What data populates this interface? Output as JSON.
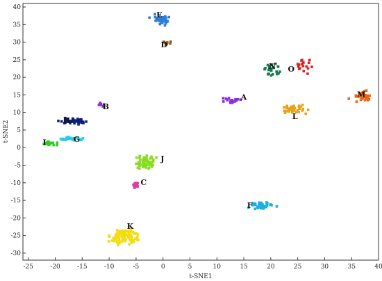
{
  "chart_data": {
    "type": "scatter",
    "xlabel": "t-SNE1",
    "ylabel": "t-SNE2",
    "xlim": [
      -26,
      40
    ],
    "ylim": [
      -32,
      41
    ],
    "xticks": [
      -25,
      -20,
      -15,
      -10,
      -5,
      0,
      5,
      10,
      15,
      20,
      25,
      30,
      35,
      40
    ],
    "yticks": [
      -30,
      -25,
      -20,
      -15,
      -10,
      -5,
      0,
      5,
      10,
      15,
      20,
      25,
      30,
      35,
      40
    ],
    "grid": false,
    "legend": "none",
    "clusters": [
      {
        "name": "E",
        "color": "#2f7fd8",
        "center": [
          -0.3,
          36.3
        ],
        "spread": [
          1.4,
          1.2
        ],
        "count": 40,
        "label_pos": [
          -0.7,
          37.8
        ]
      },
      {
        "name": "D",
        "color": "#9a5a1c",
        "center": [
          0.6,
          29.9
        ],
        "spread": [
          0.6,
          0.5
        ],
        "count": 8,
        "label_pos": [
          0.2,
          29.3
        ]
      },
      {
        "name": "N",
        "color": "#157a52",
        "center": [
          20.5,
          22.0
        ],
        "spread": [
          1.4,
          1.4
        ],
        "count": 22,
        "label_pos": [
          20.3,
          23.2
        ]
      },
      {
        "name": "O",
        "color": "#dd2222",
        "center": [
          25.5,
          23.3
        ],
        "spread": [
          1.7,
          1.5
        ],
        "count": 18,
        "label_pos": [
          23.8,
          22.4
        ]
      },
      {
        "name": "A",
        "color": "#8a2be2",
        "center": [
          13.0,
          13.6
        ],
        "spread": [
          1.4,
          0.8
        ],
        "count": 20,
        "label_pos": [
          15.0,
          14.4
        ]
      },
      {
        "name": "M",
        "color": "#ee6611",
        "center": [
          37.0,
          14.6
        ],
        "spread": [
          1.6,
          1.1
        ],
        "count": 32,
        "label_pos": [
          36.8,
          15.2
        ]
      },
      {
        "name": "L",
        "color": "#e8a21a",
        "center": [
          24.6,
          10.8
        ],
        "spread": [
          2.0,
          0.9
        ],
        "count": 40,
        "label_pos": [
          24.5,
          9.0
        ]
      },
      {
        "name": "B",
        "color": "#8a2be2",
        "center": [
          -11.6,
          12.3
        ],
        "spread": [
          0.5,
          0.6
        ],
        "count": 8,
        "label_pos": [
          -10.6,
          11.7
        ]
      },
      {
        "name": "H",
        "color": "#0b1e7a",
        "center": [
          -16.4,
          7.5
        ],
        "spread": [
          2.0,
          0.6
        ],
        "count": 44,
        "label_pos": [
          -17.9,
          7.8
        ]
      },
      {
        "name": "G",
        "color": "#22ccee",
        "center": [
          -17.0,
          2.5
        ],
        "spread": [
          1.8,
          0.4
        ],
        "count": 30,
        "label_pos": [
          -16.0,
          2.4
        ]
      },
      {
        "name": "I",
        "color": "#33cc22",
        "center": [
          -21.2,
          1.2
        ],
        "spread": [
          1.2,
          0.4
        ],
        "count": 22,
        "label_pos": [
          -22.0,
          1.5
        ]
      },
      {
        "name": "J",
        "color": "#88dd22",
        "center": [
          -3.6,
          -4.4
        ],
        "spread": [
          1.6,
          1.7
        ],
        "count": 62,
        "label_pos": [
          -0.1,
          -3.1
        ]
      },
      {
        "name": "C",
        "color": "#e23aa0",
        "center": [
          -4.9,
          -10.8
        ],
        "spread": [
          0.5,
          0.8
        ],
        "count": 12,
        "label_pos": [
          -3.6,
          -9.8
        ]
      },
      {
        "name": "F",
        "color": "#1ab0e2",
        "center": [
          18.4,
          -16.5
        ],
        "spread": [
          1.8,
          0.8
        ],
        "count": 42,
        "label_pos": [
          16.1,
          -16.4
        ]
      },
      {
        "name": "K",
        "color": "#f2dd10",
        "center": [
          -7.2,
          -25.2
        ],
        "spread": [
          1.9,
          1.8
        ],
        "count": 110,
        "label_pos": [
          -6.1,
          -22.3
        ]
      }
    ]
  }
}
